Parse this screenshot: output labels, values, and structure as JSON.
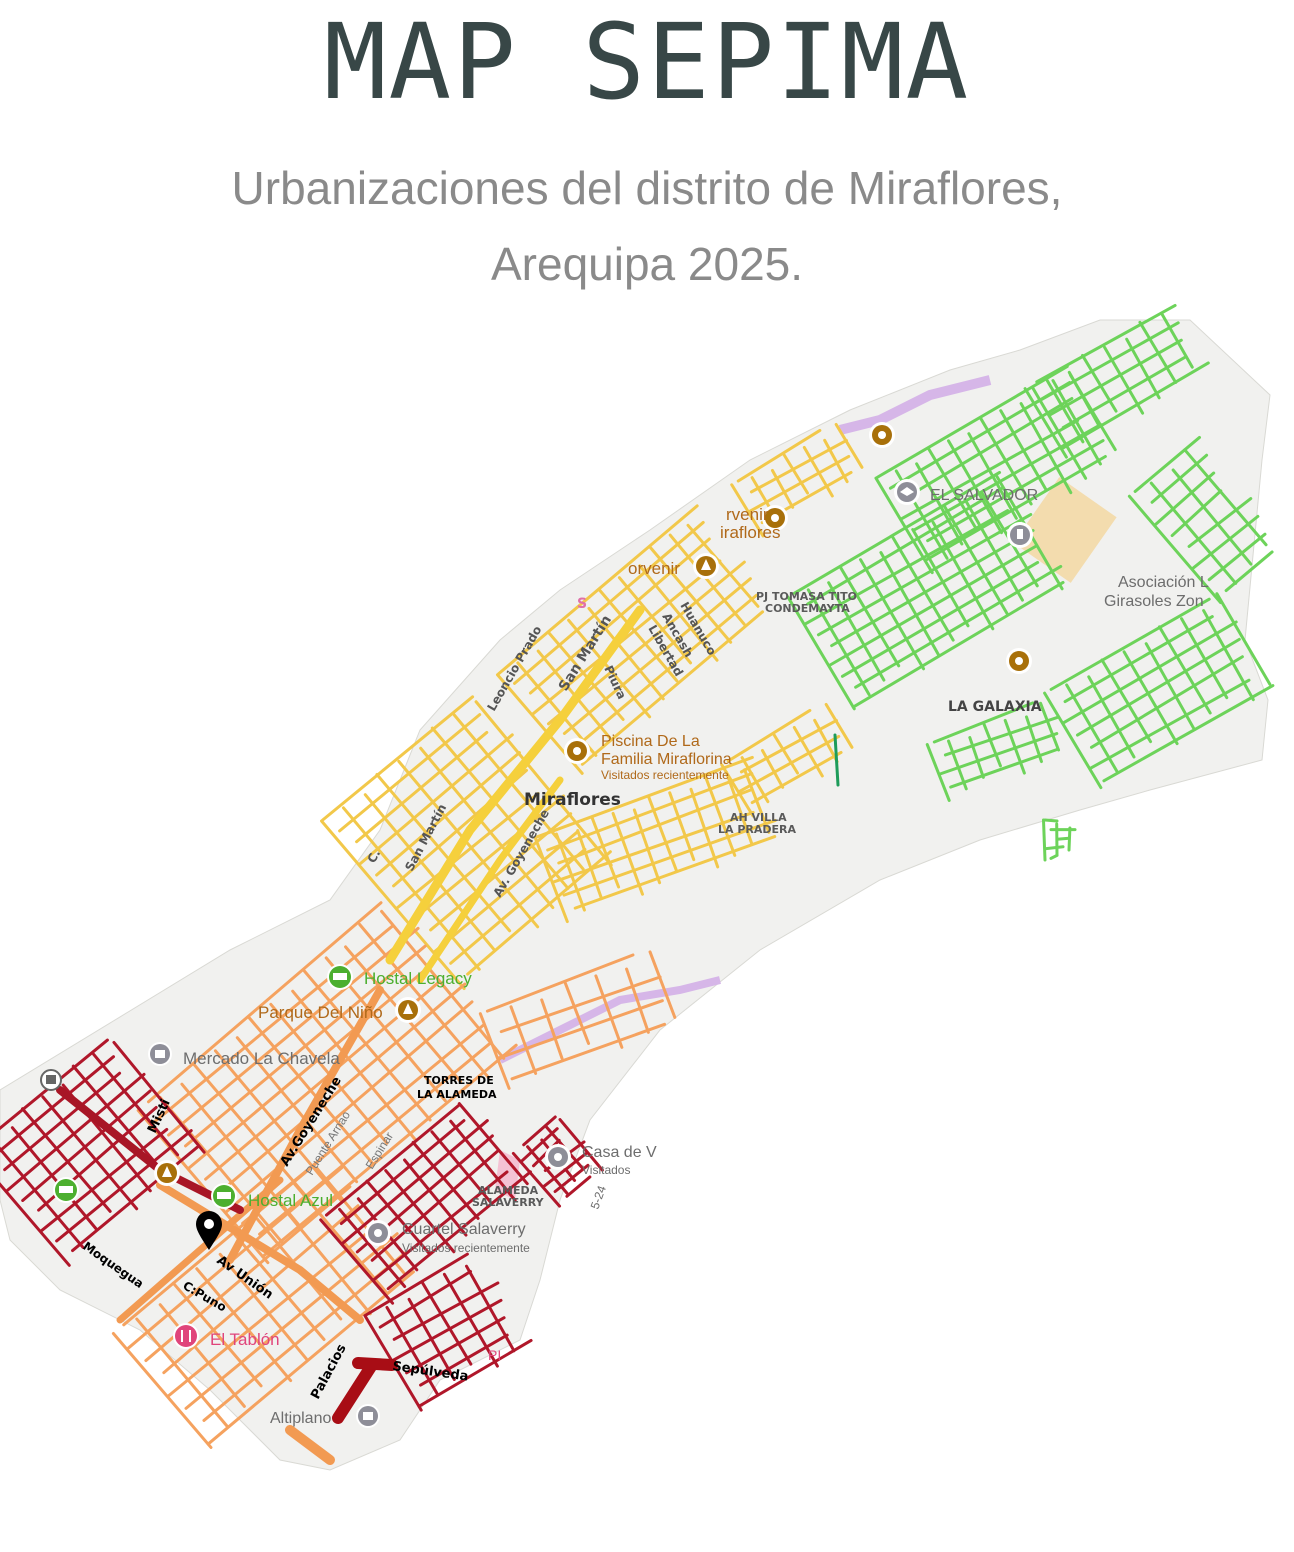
{
  "header": {
    "title": "MAP SEPIMA",
    "subtitle_line1": "Urbanizaciones del distrito de Miraflores,",
    "subtitle_line2": "Arequipa 2025."
  },
  "map": {
    "colors": {
      "background": "#f1f1ef",
      "zone_green": "#6dd35a",
      "zone_yellow": "#f2c84a",
      "zone_orange": "#f5a25f",
      "zone_red": "#b0172a",
      "poi_gold": "#a8700a",
      "poi_gray": "#8e8e98",
      "poi_green": "#4caf2f",
      "poi_pink": "#e0457b"
    },
    "places": {
      "el_salvador": "EL SALVADOR",
      "porvenir_miraflores_a": "rvenir",
      "porvenir_miraflores_b": "iraflores",
      "porvenir": "orvenir",
      "pj_tomasa_a": "PJ TOMASA TITO",
      "pj_tomasa_b": "CONDEMAYTA",
      "asociacion_a": "Asociación L",
      "asociacion_b": "Girasoles Zon",
      "la_galaxia": "LA GALAXIA",
      "piscina_a": "Piscina De La",
      "piscina_b": "Familia Miraflorina",
      "piscina_sub": "Visitados recientemente",
      "miraflores": "Miraflores",
      "villa_pradera_a": "AH VILLA",
      "villa_pradera_b": "LA PRADERA",
      "hostal_legacy": "Hostal Legacy",
      "parque_nino": "Parque Del Niño",
      "mercado": "Mercado La Chavela",
      "torres_a": "TORRES DE",
      "torres_b": "LA ALAMEDA",
      "casa": "Casa de V",
      "casa_sub": "Visitados",
      "alameda_a": "ALAMEDA",
      "alameda_b": "SALAVERRY",
      "hostal_azul": "Hostal Azul",
      "cuartel": "Cuartel Salaverry",
      "cuartel_sub": "Visitados recientemente",
      "el_tablon": "El Tablón",
      "altiplano": "Altiplano",
      "pi": "PI",
      "route_24": "5-24"
    },
    "streets": {
      "leoncio_prado": "Leoncio Prado",
      "san_martin_top": "San Martín",
      "huanuco": "Huanuco",
      "ancash": "Ancash",
      "libertad": "Libertad",
      "piura": "Piura",
      "san_martin_mid": "San Martín",
      "av_goyeneche_top": "Av. Goyeneche",
      "c": "C.",
      "s": "S",
      "misti": "Misti",
      "av_goyeneche": "Av.Goyeneche",
      "puente_arnao": "Puente Arnao",
      "espinar": "Espinar",
      "moquegua": "Moquegua",
      "av_union": "Av Unión",
      "c_puno": "C:Puno",
      "palacios": "Palacios",
      "sepulveda": "Sepúlveda"
    }
  }
}
